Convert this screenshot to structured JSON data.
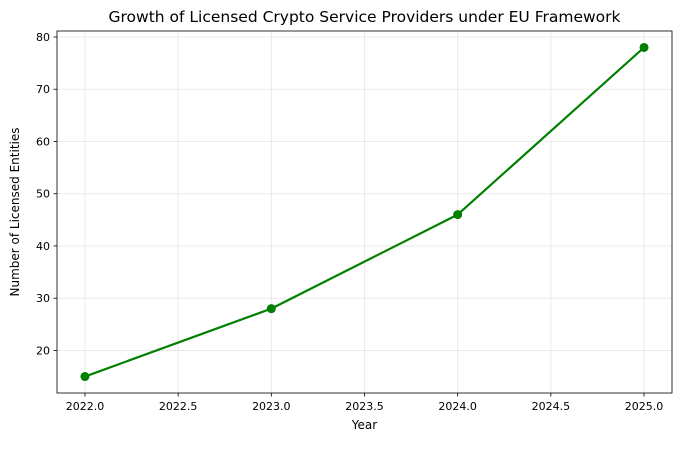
{
  "chart_data": {
    "type": "line",
    "title": "Growth of Licensed Crypto Service Providers under EU Framework",
    "xlabel": "Year",
    "ylabel": "Number of Licensed Entities",
    "x": [
      2022,
      2023,
      2024,
      2025
    ],
    "series": [
      {
        "values": [
          15,
          28,
          46,
          78
        ],
        "color": "#008000",
        "marker": "circle"
      }
    ],
    "xlim": [
      2021.85,
      2025.15
    ],
    "ylim": [
      11.85,
      81.15
    ],
    "xticks": [
      2022.0,
      2022.5,
      2023.0,
      2023.5,
      2024.0,
      2024.5,
      2025.0
    ],
    "xtick_labels": [
      "2022.0",
      "2022.5",
      "2023.0",
      "2023.5",
      "2024.0",
      "2024.5",
      "2025.0"
    ],
    "yticks": [
      20,
      30,
      40,
      50,
      60,
      70,
      80
    ],
    "ytick_labels": [
      "20",
      "30",
      "40",
      "50",
      "60",
      "70",
      "80"
    ],
    "grid": true,
    "legend": false
  }
}
